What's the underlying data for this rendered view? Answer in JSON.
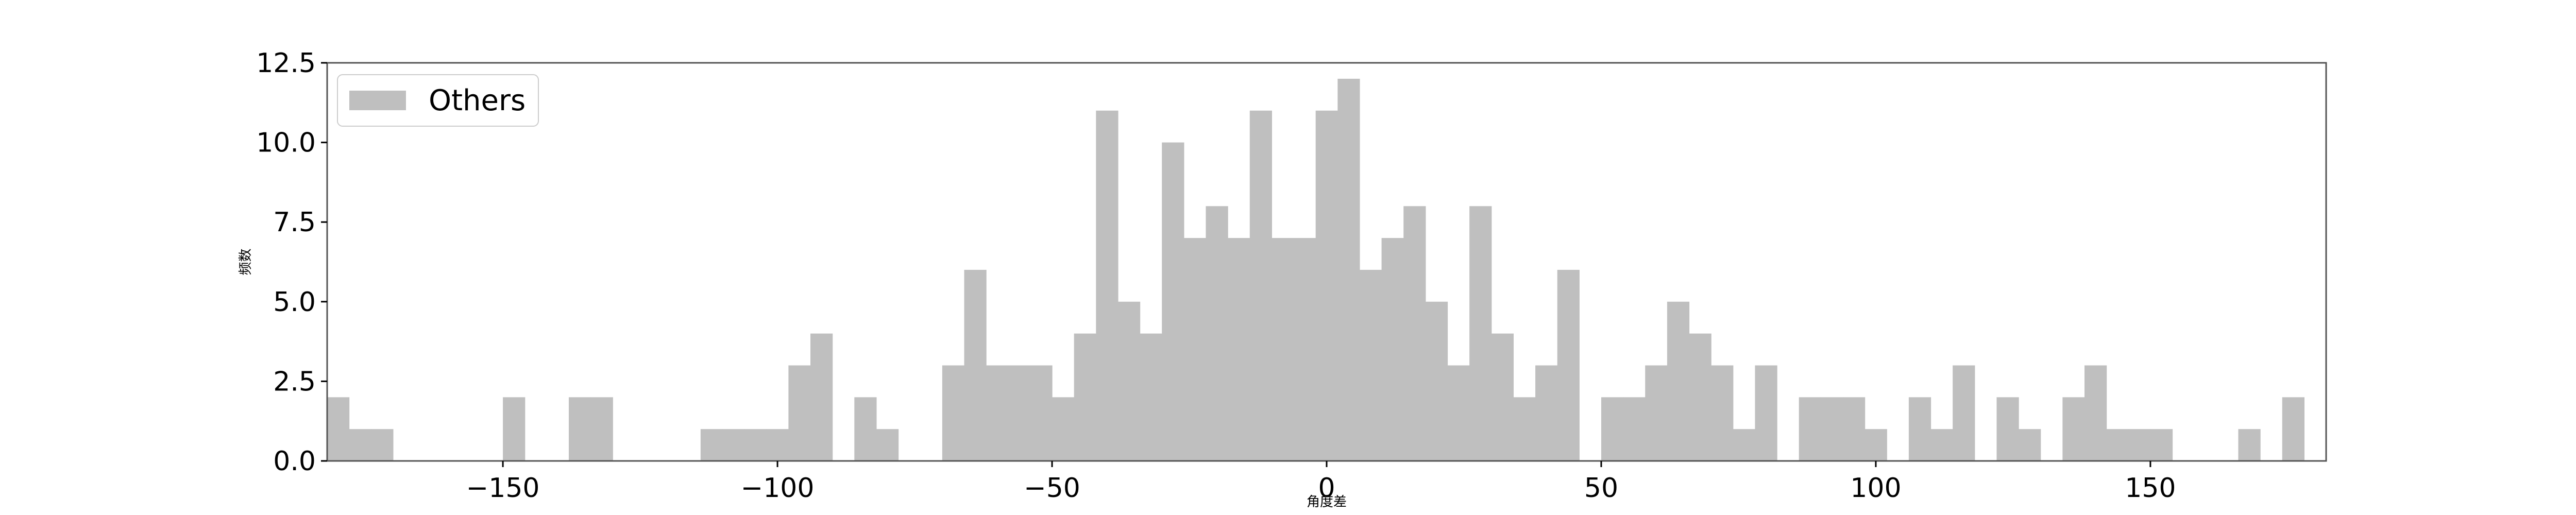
{
  "chart_data": {
    "type": "bar",
    "subtype": "histogram",
    "title": "",
    "xlabel": "角度差",
    "ylabel": "频数",
    "xlim": [
      -182,
      182
    ],
    "ylim": [
      0,
      12.5
    ],
    "bin_width": 4,
    "grid": false,
    "legend": {
      "position": "top-left",
      "entries": [
        "Others"
      ]
    },
    "colors": {
      "bars": "#bfbfbf",
      "frame": "#555555"
    },
    "x_ticks": [
      {
        "value": -150,
        "label": "−150"
      },
      {
        "value": -100,
        "label": "−100"
      },
      {
        "value": -50,
        "label": "−50"
      },
      {
        "value": 0,
        "label": "0"
      },
      {
        "value": 50,
        "label": "50"
      },
      {
        "value": 100,
        "label": "100"
      },
      {
        "value": 150,
        "label": "150"
      }
    ],
    "y_ticks": [
      {
        "value": 0,
        "label": "0.0"
      },
      {
        "value": 2.5,
        "label": "2.5"
      },
      {
        "value": 5,
        "label": "5.0"
      },
      {
        "value": 7.5,
        "label": "7.5"
      },
      {
        "value": 10,
        "label": "10.0"
      },
      {
        "value": 12.5,
        "label": "12.5"
      }
    ],
    "series": [
      {
        "name": "Others",
        "bin_starts": [
          -182,
          -178,
          -174,
          -150,
          -138,
          -134,
          -114,
          -110,
          -106,
          -102,
          -98,
          -94,
          -86,
          -82,
          -70,
          -66,
          -62,
          -58,
          -54,
          -50,
          -46,
          -42,
          -38,
          -34,
          -30,
          -26,
          -22,
          -18,
          -14,
          -10,
          -6,
          -2,
          2,
          6,
          10,
          14,
          18,
          22,
          26,
          30,
          34,
          38,
          42,
          50,
          54,
          58,
          62,
          66,
          70,
          74,
          78,
          86,
          90,
          94,
          98,
          106,
          110,
          114,
          122,
          126,
          134,
          138,
          142,
          146,
          150,
          166,
          174
        ],
        "values": [
          2,
          1,
          1,
          2,
          2,
          2,
          1,
          1,
          1,
          1,
          3,
          4,
          2,
          1,
          3,
          6,
          3,
          3,
          3,
          2,
          4,
          11,
          5,
          4,
          10,
          7,
          8,
          7,
          11,
          7,
          7,
          11,
          12,
          6,
          7,
          8,
          5,
          3,
          8,
          4,
          2,
          3,
          6,
          2,
          2,
          3,
          5,
          4,
          3,
          1,
          3,
          2,
          2,
          2,
          1,
          2,
          1,
          3,
          2,
          1,
          2,
          3,
          1,
          1,
          1,
          1,
          2
        ]
      }
    ]
  }
}
